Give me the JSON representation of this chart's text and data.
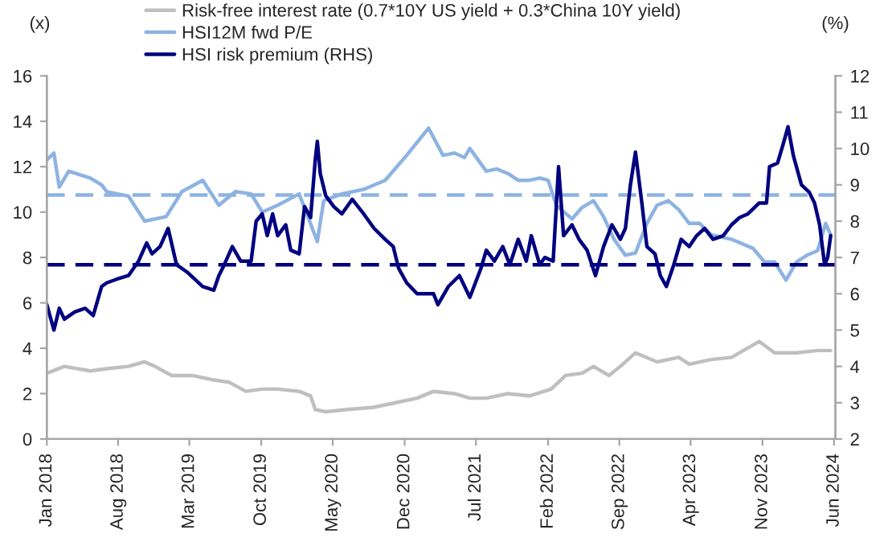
{
  "chart_data": {
    "type": "line",
    "ylabel": "(x)",
    "y2label": "(%)",
    "xlim": [
      "2018-01-01",
      "2024-06-05"
    ],
    "xticks": [
      {
        "value": "2018-01",
        "label": "Jan 2018"
      },
      {
        "value": "2018-08",
        "label": "Aug 2018"
      },
      {
        "value": "2019-03",
        "label": "Mar 2019"
      },
      {
        "value": "2019-10",
        "label": "Oct 2019"
      },
      {
        "value": "2020-05",
        "label": "May 2020"
      },
      {
        "value": "2020-12",
        "label": "Dec 2020"
      },
      {
        "value": "2021-07",
        "label": "Jul 2021"
      },
      {
        "value": "2022-02",
        "label": "Feb 2022"
      },
      {
        "value": "2022-09",
        "label": "Sep 2022"
      },
      {
        "value": "2023-04",
        "label": "Apr 2023"
      },
      {
        "value": "2023-11",
        "label": "Nov 2023"
      },
      {
        "value": "2024-06",
        "label": "Jun 2024"
      }
    ],
    "ylim": [
      0,
      16
    ],
    "yticks": [
      0,
      2,
      4,
      6,
      8,
      10,
      12,
      14,
      16
    ],
    "y2lim": [
      2,
      12
    ],
    "y2ticks": [
      2,
      3,
      4,
      5,
      6,
      7,
      8,
      9,
      10,
      11,
      12
    ],
    "grid": false,
    "legend": "top",
    "marker": "none",
    "line_style": "solid",
    "ref_lines": [
      {
        "axis": "y",
        "value": 10.75,
        "color": "#8db3e2",
        "line_style": "dashed"
      },
      {
        "axis": "y2",
        "value": 6.8,
        "color": "#000080",
        "line_style": "dashed"
      }
    ],
    "series": [
      {
        "name": "Risk-free interest rate (0.7*10Y US yield + 0.3*China 10Y yield)",
        "color": "#bfbfbf",
        "axis": "y",
        "x": [
          "2018-01-01",
          "2018-02-22",
          "2018-05-10",
          "2018-06-28",
          "2018-09-01",
          "2018-10-19",
          "2018-11-19",
          "2019-01-07",
          "2019-03-10",
          "2019-05-13",
          "2019-06-28",
          "2019-08-16",
          "2019-10-04",
          "2019-11-19",
          "2020-01-22",
          "2020-02-25",
          "2020-03-10",
          "2020-04-10",
          "2020-06-13",
          "2020-09-01",
          "2020-11-04",
          "2021-01-07",
          "2021-02-25",
          "2021-04-28",
          "2021-06-13",
          "2021-08-01",
          "2021-10-04",
          "2021-12-07",
          "2022-02-10",
          "2022-03-25",
          "2022-05-13",
          "2022-06-16",
          "2022-08-01",
          "2022-09-04",
          "2022-10-19",
          "2022-12-22",
          "2023-02-25",
          "2023-03-28",
          "2023-06-01",
          "2023-08-01",
          "2023-10-22",
          "2023-12-07",
          "2024-02-10",
          "2024-04-13",
          "2024-05-22"
        ],
        "values": [
          2.9,
          3.2,
          3.0,
          3.1,
          3.2,
          3.4,
          3.2,
          2.8,
          2.8,
          2.6,
          2.5,
          2.1,
          2.2,
          2.2,
          2.1,
          1.9,
          1.3,
          1.2,
          1.3,
          1.4,
          1.6,
          1.8,
          2.1,
          2.0,
          1.8,
          1.8,
          2.0,
          1.9,
          2.2,
          2.8,
          2.9,
          3.2,
          2.8,
          3.2,
          3.8,
          3.4,
          3.6,
          3.3,
          3.5,
          3.6,
          4.3,
          3.8,
          3.8,
          3.9,
          3.9
        ]
      },
      {
        "name": "HSI12M fwd P/E",
        "color": "#8db3e2",
        "axis": "y",
        "x": [
          "2018-01-01",
          "2018-01-22",
          "2018-02-07",
          "2018-03-07",
          "2018-05-10",
          "2018-06-13",
          "2018-06-28",
          "2018-09-01",
          "2018-10-19",
          "2018-12-22",
          "2019-02-07",
          "2019-04-10",
          "2019-05-28",
          "2019-07-16",
          "2019-09-01",
          "2019-10-04",
          "2019-11-19",
          "2020-01-22",
          "2020-03-16",
          "2020-04-04",
          "2020-05-28",
          "2020-08-01",
          "2020-10-04",
          "2020-12-07",
          "2021-02-10",
          "2021-03-25",
          "2021-04-28",
          "2021-05-28",
          "2021-06-13",
          "2021-08-01",
          "2021-09-01",
          "2021-10-04",
          "2021-11-04",
          "2021-12-07",
          "2022-01-07",
          "2022-02-01",
          "2022-02-25",
          "2022-04-13",
          "2022-05-13",
          "2022-06-16",
          "2022-07-16",
          "2022-08-16",
          "2022-09-19",
          "2022-10-19",
          "2022-11-22",
          "2022-12-22",
          "2023-01-25",
          "2023-02-25",
          "2023-03-28",
          "2023-04-28",
          "2023-06-01",
          "2023-08-01",
          "2023-10-04",
          "2023-11-07",
          "2023-12-07",
          "2024-01-10",
          "2024-02-10",
          "2024-03-13",
          "2024-04-13",
          "2024-05-07",
          "2024-05-22"
        ],
        "values": [
          12.3,
          12.6,
          11.1,
          11.8,
          11.5,
          11.2,
          10.9,
          10.7,
          9.6,
          9.8,
          10.9,
          11.4,
          10.3,
          10.9,
          10.8,
          10.0,
          10.3,
          10.8,
          8.7,
          10.5,
          10.8,
          11.0,
          11.4,
          12.5,
          13.7,
          12.5,
          12.6,
          12.4,
          12.8,
          11.8,
          11.9,
          11.7,
          11.4,
          11.4,
          11.5,
          11.4,
          10.3,
          9.7,
          10.2,
          10.5,
          9.8,
          8.8,
          8.1,
          8.2,
          9.5,
          10.3,
          10.5,
          10.1,
          9.5,
          9.5,
          9.0,
          8.8,
          8.4,
          7.8,
          7.8,
          7.0,
          7.8,
          8.1,
          8.3,
          9.5,
          9.0
        ]
      },
      {
        "name": "HSI risk premium (RHS)",
        "color": "#000080",
        "axis": "y2",
        "x": [
          "2018-01-01",
          "2018-01-22",
          "2018-02-07",
          "2018-02-22",
          "2018-03-25",
          "2018-04-25",
          "2018-05-19",
          "2018-06-13",
          "2018-06-28",
          "2018-07-28",
          "2018-09-01",
          "2018-10-01",
          "2018-10-25",
          "2018-11-10",
          "2018-12-04",
          "2018-12-28",
          "2019-01-22",
          "2019-02-22",
          "2019-04-10",
          "2019-05-13",
          "2019-05-28",
          "2019-06-13",
          "2019-07-07",
          "2019-08-01",
          "2019-09-01",
          "2019-09-16",
          "2019-10-04",
          "2019-10-19",
          "2019-11-04",
          "2019-11-19",
          "2019-12-13",
          "2019-12-28",
          "2020-01-22",
          "2020-02-07",
          "2020-02-25",
          "2020-03-10",
          "2020-03-16",
          "2020-03-25",
          "2020-04-10",
          "2020-05-04",
          "2020-05-28",
          "2020-06-28",
          "2020-08-01",
          "2020-09-01",
          "2020-10-04",
          "2020-10-28",
          "2020-11-13",
          "2020-12-07",
          "2021-01-07",
          "2021-02-25",
          "2021-03-10",
          "2021-04-10",
          "2021-05-13",
          "2021-06-13",
          "2021-07-16",
          "2021-08-01",
          "2021-08-25",
          "2021-09-19",
          "2021-10-10",
          "2021-11-04",
          "2021-11-28",
          "2021-12-13",
          "2022-01-07",
          "2022-01-22",
          "2022-02-16",
          "2022-03-04",
          "2022-03-19",
          "2022-04-13",
          "2022-05-04",
          "2022-05-28",
          "2022-06-22",
          "2022-07-16",
          "2022-08-10",
          "2022-09-04",
          "2022-09-19",
          "2022-10-04",
          "2022-10-19",
          "2022-11-07",
          "2022-11-22",
          "2022-12-16",
          "2023-01-01",
          "2023-01-19",
          "2023-02-10",
          "2023-03-04",
          "2023-03-28",
          "2023-04-19",
          "2023-05-13",
          "2023-06-07",
          "2023-07-07",
          "2023-08-01",
          "2023-08-25",
          "2023-09-19",
          "2023-10-22",
          "2023-11-13",
          "2023-11-22",
          "2023-12-16",
          "2024-01-01",
          "2024-01-16",
          "2024-02-01",
          "2024-02-25",
          "2024-03-19",
          "2024-04-04",
          "2024-04-19",
          "2024-05-04",
          "2024-05-13",
          "2024-05-22"
        ],
        "values": [
          5.7,
          5.0,
          5.6,
          5.3,
          5.5,
          5.6,
          5.4,
          6.2,
          6.3,
          6.4,
          6.5,
          6.9,
          7.4,
          7.1,
          7.3,
          7.8,
          6.8,
          6.6,
          6.2,
          6.1,
          6.5,
          6.8,
          7.3,
          6.9,
          6.9,
          8.0,
          8.2,
          7.6,
          8.2,
          7.6,
          7.9,
          7.2,
          7.1,
          8.4,
          8.1,
          9.7,
          10.2,
          9.3,
          8.7,
          8.4,
          8.2,
          8.6,
          8.2,
          7.8,
          7.5,
          7.3,
          6.7,
          6.3,
          6.0,
          6.0,
          5.7,
          6.2,
          6.5,
          5.9,
          6.7,
          7.2,
          6.9,
          7.3,
          6.8,
          7.5,
          6.9,
          7.6,
          6.8,
          7.0,
          6.9,
          9.5,
          7.6,
          7.9,
          7.5,
          7.2,
          6.5,
          7.3,
          7.9,
          7.5,
          7.8,
          9.0,
          9.9,
          8.5,
          7.3,
          7.1,
          6.5,
          6.2,
          6.8,
          7.5,
          7.3,
          7.6,
          7.8,
          7.5,
          7.6,
          7.9,
          8.1,
          8.2,
          8.5,
          8.5,
          9.5,
          9.6,
          10.1,
          10.6,
          9.8,
          9.0,
          8.8,
          8.5,
          7.9,
          6.8,
          7.0,
          7.6
        ]
      }
    ]
  }
}
